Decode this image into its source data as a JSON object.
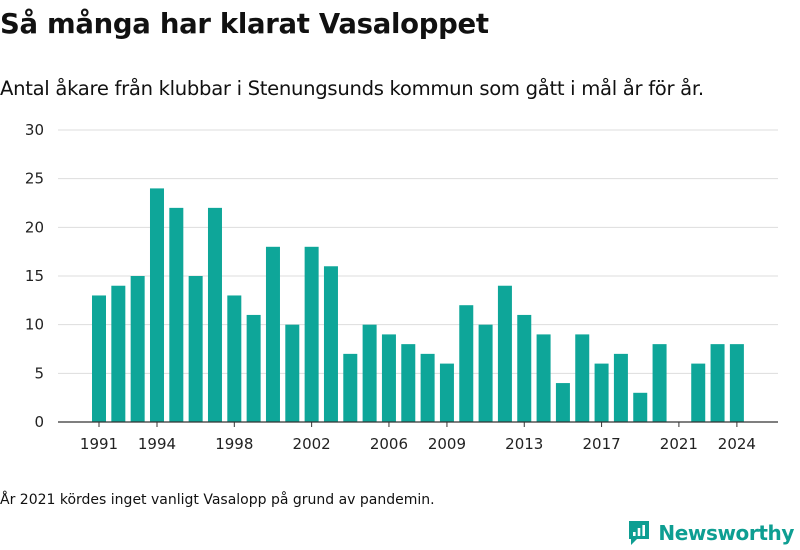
{
  "title": "Så många har klarat Vasaloppet",
  "subtitle": "Antal åkare från klubbar i Stenungsunds kommun som gått i mål år för år.",
  "footnote": "År 2021 kördes inget vanligt Vasalopp på grund av pandemin.",
  "brand": {
    "name": "Newsworthy",
    "icon": "newsworthy-logo-icon",
    "color": "#0e9e92"
  },
  "chart_data": {
    "type": "bar",
    "categories": [
      1991,
      1992,
      1993,
      1994,
      1995,
      1996,
      1997,
      1998,
      1999,
      2000,
      2001,
      2002,
      2003,
      2004,
      2005,
      2006,
      2007,
      2008,
      2009,
      2010,
      2011,
      2012,
      2013,
      2014,
      2015,
      2016,
      2017,
      2018,
      2019,
      2020,
      2021,
      2022,
      2023,
      2024
    ],
    "values": [
      13,
      14,
      15,
      24,
      22,
      15,
      22,
      13,
      11,
      18,
      10,
      18,
      16,
      7,
      10,
      9,
      8,
      7,
      6,
      12,
      10,
      14,
      11,
      9,
      4,
      9,
      6,
      7,
      3,
      8,
      null,
      6,
      8,
      8
    ],
    "x_ticks": [
      1991,
      1994,
      1998,
      2002,
      2006,
      2009,
      2013,
      2017,
      2021,
      2024
    ],
    "y_ticks": [
      0,
      5,
      10,
      15,
      20,
      25,
      30
    ],
    "ylim": [
      0,
      30
    ],
    "bar_color": "#0ea699",
    "grid": true,
    "legend": "none",
    "xlabel": "",
    "ylabel": ""
  }
}
